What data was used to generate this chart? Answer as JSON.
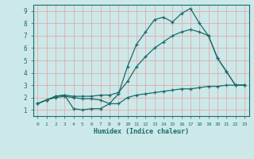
{
  "xlabel": "Humidex (Indice chaleur)",
  "bg_color": "#cce8e8",
  "grid_color": "#ff9999",
  "line_color": "#1a6b6b",
  "xlim": [
    -0.5,
    23.5
  ],
  "ylim": [
    0.5,
    9.5
  ],
  "xticks": [
    0,
    1,
    2,
    3,
    4,
    5,
    6,
    7,
    8,
    9,
    10,
    11,
    12,
    13,
    14,
    15,
    16,
    17,
    18,
    19,
    20,
    21,
    22,
    23
  ],
  "yticks": [
    1,
    2,
    3,
    4,
    5,
    6,
    7,
    8,
    9
  ],
  "line1_x": [
    0,
    1,
    2,
    3,
    4,
    5,
    6,
    7,
    8,
    9,
    10,
    11,
    12,
    13,
    14,
    15,
    16,
    17,
    18,
    19,
    20,
    21,
    22,
    23
  ],
  "line1_y": [
    1.5,
    1.8,
    2.1,
    2.2,
    1.1,
    1.0,
    1.1,
    1.1,
    1.5,
    2.3,
    4.5,
    6.3,
    7.3,
    8.3,
    8.5,
    8.1,
    8.8,
    9.2,
    8.0,
    7.0,
    5.2,
    4.1,
    3.0,
    3.0
  ],
  "line2_x": [
    0,
    1,
    2,
    3,
    4,
    5,
    6,
    7,
    8,
    9,
    10,
    11,
    12,
    13,
    14,
    15,
    16,
    17,
    18,
    19,
    20,
    21,
    22,
    23
  ],
  "line2_y": [
    1.5,
    1.8,
    2.1,
    2.2,
    2.1,
    2.1,
    2.1,
    2.2,
    2.2,
    2.4,
    3.3,
    4.5,
    5.3,
    6.0,
    6.5,
    7.0,
    7.3,
    7.5,
    7.3,
    7.0,
    5.2,
    4.1,
    3.0,
    3.0
  ],
  "line3_x": [
    0,
    1,
    2,
    3,
    4,
    5,
    6,
    7,
    8,
    9,
    10,
    11,
    12,
    13,
    14,
    15,
    16,
    17,
    18,
    19,
    20,
    21,
    22,
    23
  ],
  "line3_y": [
    1.5,
    1.8,
    2.0,
    2.1,
    2.0,
    1.9,
    1.9,
    1.8,
    1.5,
    1.5,
    2.0,
    2.2,
    2.3,
    2.4,
    2.5,
    2.6,
    2.7,
    2.7,
    2.8,
    2.9,
    2.9,
    3.0,
    3.0,
    3.0
  ]
}
